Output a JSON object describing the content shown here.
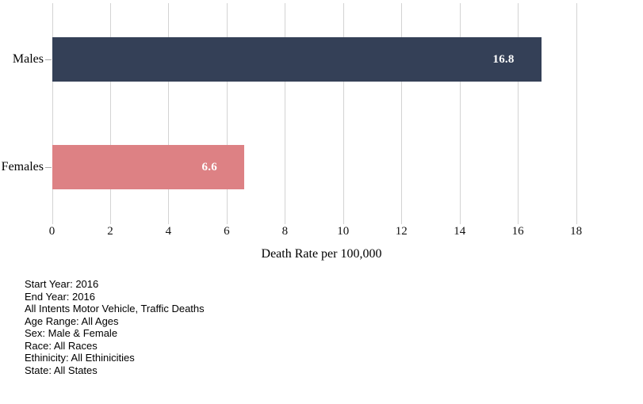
{
  "chart_data": {
    "type": "bar",
    "orientation": "horizontal",
    "title": "",
    "categories": [
      "Males",
      "Females"
    ],
    "values": [
      16.8,
      6.6
    ],
    "value_labels": [
      "16.8",
      "6.6"
    ],
    "bar_colors": [
      "#344057",
      "#dd8184"
    ],
    "xlabel": "Death Rate per 100,000",
    "ylabel": "",
    "xlim": [
      0,
      18
    ],
    "xticks": [
      0,
      2,
      4,
      6,
      8,
      10,
      12,
      14,
      16,
      18
    ],
    "grid": true,
    "legend_position": "none"
  },
  "colors": {
    "male_bar": "#344057",
    "female_bar": "#dd8184",
    "gridline": "#d3d3d3",
    "category_tick": "#aaaaaa",
    "value_label_text": "#ffffff"
  },
  "footer": {
    "lines": [
      "Start Year: 2016",
      "End Year: 2016",
      "All Intents Motor Vehicle, Traffic Deaths",
      "Age Range: All Ages",
      "Sex: Male & Female",
      "Race: All Races",
      "Ethinicity: All Ethinicities",
      "State: All States"
    ]
  }
}
